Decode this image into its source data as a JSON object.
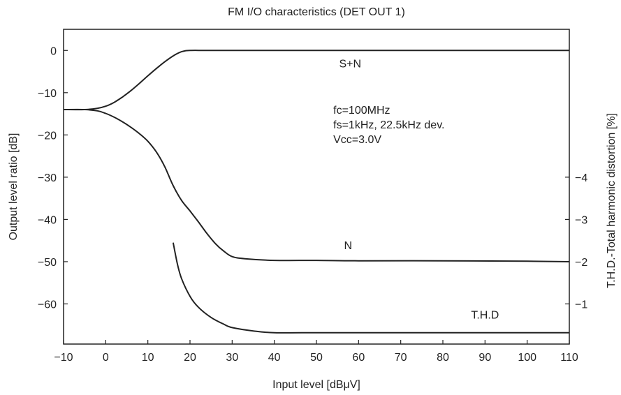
{
  "chart_data": {
    "type": "line",
    "title": "FM I/O characteristics (DET OUT 1)",
    "xlabel": "Input level [dBμV]",
    "ylabel": "Output level ratio [dB]",
    "y2label": "T.H.D.-Total harmonic distortion [%]",
    "xlim": [
      -10,
      110
    ],
    "ylim": [
      -69.5,
      5
    ],
    "y2_scale": {
      "value_at_minus_50": -2,
      "step_per_unit": 10
    },
    "grid": false,
    "x_ticks": [
      -10,
      0,
      10,
      20,
      30,
      40,
      50,
      60,
      70,
      80,
      90,
      100,
      110
    ],
    "x_tick_labels": [
      "−10",
      "0",
      "10",
      "20",
      "30",
      "40",
      "50",
      "60",
      "70",
      "80",
      "90",
      "100",
      "110"
    ],
    "y_ticks": [
      0,
      -10,
      -20,
      -30,
      -40,
      -50,
      -60
    ],
    "y_tick_labels": [
      "0",
      "−10",
      "−20",
      "−30",
      "−40",
      "−50",
      "−60"
    ],
    "y2_ticks": [
      -4,
      -3,
      -2,
      -1
    ],
    "y2_tick_labels": [
      "−4",
      "−3",
      "−2",
      "−1"
    ],
    "series": [
      {
        "name": "S+N",
        "x": [
          -10,
          -5,
          -2,
          0,
          2,
          4,
          6,
          8,
          10,
          12,
          14,
          16,
          18,
          20,
          25,
          40,
          60,
          80,
          100,
          110
        ],
        "y": [
          -14,
          -14,
          -13.7,
          -13.2,
          -12.3,
          -11,
          -9.5,
          -7.8,
          -6,
          -4.3,
          -2.7,
          -1.3,
          -0.3,
          0,
          0,
          0,
          0,
          0,
          0,
          0
        ]
      },
      {
        "name": "N",
        "x": [
          -10,
          -5,
          -2,
          0,
          2,
          4,
          6,
          8,
          10,
          12,
          14,
          16,
          18,
          20,
          22,
          24,
          26,
          28,
          30,
          33,
          40,
          50,
          60,
          80,
          100,
          110
        ],
        "y": [
          -14,
          -14,
          -14.3,
          -14.9,
          -15.8,
          -16.9,
          -18.2,
          -19.7,
          -21.5,
          -24,
          -27.5,
          -32,
          -35.5,
          -38,
          -40.6,
          -43.3,
          -45.7,
          -47.5,
          -48.8,
          -49.3,
          -49.7,
          -49.7,
          -49.8,
          -49.8,
          -49.9,
          -50
        ]
      },
      {
        "name": "T.H.D",
        "x": [
          16,
          17,
          18,
          20,
          22,
          25,
          28,
          30,
          35,
          40,
          50,
          60,
          80,
          100,
          110
        ],
        "y": [
          -45.5,
          -50.5,
          -54,
          -58.2,
          -60.8,
          -63.2,
          -64.8,
          -65.6,
          -66.4,
          -66.8,
          -66.8,
          -66.8,
          -66.8,
          -66.8,
          -66.8
        ]
      }
    ],
    "annotations": {
      "sn_label": {
        "text": "S+N",
        "x": 58,
        "y": -4
      },
      "n_label": {
        "text": "N",
        "x": 57.5,
        "y": -47
      },
      "thd_label": {
        "text": "T.H.D",
        "x": 90,
        "y": -63.5
      },
      "condition_lines": [
        "fc=100MHz",
        "fs=1kHz, 22.5kHz dev.",
        "Vcc=3.0V"
      ],
      "condition_anchor": {
        "x": 54,
        "y": -15
      }
    }
  }
}
